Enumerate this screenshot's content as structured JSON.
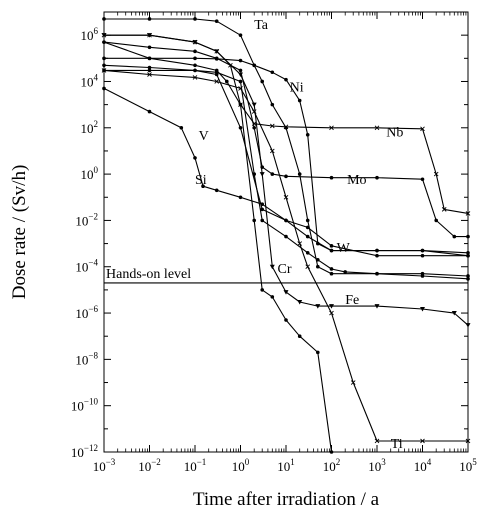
{
  "chart_data": {
    "type": "line",
    "xlabel": "Time after irradiation / a",
    "ylabel": "Dose rate / (Sv/h)",
    "x_scale": "log",
    "y_scale": "log",
    "xlim": [
      0.001,
      100000
    ],
    "ylim": [
      1e-12,
      10000000
    ],
    "x_ticks": [
      {
        "base": "10",
        "exp": "−3"
      },
      {
        "base": "10",
        "exp": "−2"
      },
      {
        "base": "10",
        "exp": "−1"
      },
      {
        "base": "10",
        "exp": "0"
      },
      {
        "base": "10",
        "exp": "1"
      },
      {
        "base": "10",
        "exp": "2"
      },
      {
        "base": "10",
        "exp": "3"
      },
      {
        "base": "10",
        "exp": "4"
      },
      {
        "base": "10",
        "exp": "5"
      }
    ],
    "y_ticks": [
      {
        "base": "10",
        "exp": "6"
      },
      {
        "base": "10",
        "exp": "4"
      },
      {
        "base": "10",
        "exp": "2"
      },
      {
        "base": "10",
        "exp": "0"
      },
      {
        "base": "10",
        "exp": "−2"
      },
      {
        "base": "10",
        "exp": "−4"
      },
      {
        "base": "10",
        "exp": "−6"
      },
      {
        "base": "10",
        "exp": "−8"
      },
      {
        "base": "10",
        "exp": "−10"
      },
      {
        "base": "10",
        "exp": "−12"
      }
    ],
    "reference_line": {
      "label": "Hands-on level",
      "y": 2e-05
    },
    "series": [
      {
        "name": "Ta",
        "marker": "dot",
        "label_at": [
          2.0,
          3000000
        ],
        "x": [
          0.001,
          0.01,
          0.1,
          0.3,
          1,
          2,
          3,
          5,
          10,
          20,
          30,
          50,
          100,
          1000,
          10000,
          100000
        ],
        "y": [
          5000000,
          5000000,
          5000000,
          4000000,
          1000000,
          50000,
          10000,
          1000,
          100,
          1,
          0.01,
          0.0001,
          5e-05,
          5e-05,
          4e-05,
          3e-05
        ]
      },
      {
        "name": "Ni",
        "marker": "dot",
        "label_at": [
          12,
          6000
        ],
        "x": [
          0.001,
          0.01,
          0.1,
          0.3,
          1,
          2,
          5,
          10,
          20,
          30,
          50,
          100,
          1000,
          10000,
          100000
        ],
        "y": [
          100000,
          100000,
          100000,
          95000,
          80000,
          50000,
          25000,
          12000,
          1500,
          50,
          0.001,
          0.0005,
          0.0005,
          0.0005,
          0.0003
        ]
      },
      {
        "name": "Nb",
        "marker": "cross",
        "label_at": [
          1600,
          70
        ],
        "x": [
          0.001,
          0.01,
          0.1,
          0.3,
          0.6,
          1,
          2,
          5,
          10,
          100,
          1000,
          10000,
          20000,
          30000,
          100000
        ],
        "y": [
          1000000,
          1000000,
          500000,
          200000,
          50000,
          1000,
          150,
          120,
          110,
          100,
          100,
          90,
          1,
          0.03,
          0.02
        ]
      },
      {
        "name": "Mo",
        "marker": "dot",
        "label_at": [
          220,
          0.6
        ],
        "x": [
          0.001,
          0.01,
          0.1,
          0.3,
          1,
          2,
          3,
          5,
          10,
          100,
          1000,
          10000,
          20000,
          50000,
          100000
        ],
        "y": [
          500000,
          300000,
          200000,
          100000,
          30000,
          100,
          2,
          1,
          0.8,
          0.7,
          0.7,
          0.6,
          0.01,
          0.002,
          0.002
        ]
      },
      {
        "name": "V",
        "marker": "dot",
        "label_at": [
          0.12,
          50
        ],
        "x": [
          0.001,
          0.01,
          0.1,
          0.3,
          0.5,
          1,
          2,
          3,
          5,
          10,
          20,
          50,
          100
        ],
        "y": [
          500000,
          100000,
          50000,
          30000,
          10000,
          1000,
          0.01,
          1e-05,
          5e-06,
          5e-07,
          1e-07,
          2e-08,
          1e-12
        ]
      },
      {
        "name": "Si",
        "marker": "dot",
        "label_at": [
          0.1,
          0.6
        ],
        "x": [
          0.001,
          0.01,
          0.05,
          0.1,
          0.15,
          0.3,
          1,
          3,
          10,
          30,
          100,
          1000,
          10000,
          100000
        ],
        "y": [
          5000,
          500,
          100,
          5,
          0.3,
          0.2,
          0.1,
          0.05,
          0.01,
          0.002,
          0.0005,
          0.0005,
          0.0005,
          0.0004
        ]
      },
      {
        "name": "W",
        "marker": "dot",
        "label_at": [
          130,
          0.0007
        ],
        "x": [
          0.001,
          0.01,
          0.1,
          0.3,
          1,
          3,
          10,
          30,
          100,
          1000,
          10000,
          100000
        ],
        "y": [
          50000,
          40000,
          30000,
          20000,
          100,
          0.03,
          0.01,
          0.005,
          0.0008,
          0.0003,
          0.0003,
          0.0003
        ]
      },
      {
        "name": "Cr",
        "marker": "dot",
        "label_at": [
          6.5,
          9e-05
        ],
        "x": [
          0.001,
          0.01,
          0.1,
          0.3,
          1,
          2,
          3,
          10,
          30,
          50,
          100,
          200,
          1000,
          10000,
          100000
        ],
        "y": [
          30000,
          30000,
          30000,
          25000,
          10000,
          1,
          0.01,
          0.002,
          0.0004,
          0.0002,
          8e-05,
          6e-05,
          5e-05,
          5e-05,
          4e-05
        ]
      },
      {
        "name": "Fe",
        "marker": "triangle",
        "label_at": [
          200,
          4e-06
        ],
        "x": [
          0.001,
          0.01,
          0.1,
          0.3,
          1,
          2,
          3,
          5,
          10,
          20,
          50,
          100,
          1000,
          10000,
          50000,
          100000
        ],
        "y": [
          1000000,
          1000000,
          500000,
          200000,
          20000,
          1000,
          1,
          0.0001,
          8e-06,
          3e-06,
          2e-06,
          2e-06,
          2e-06,
          1.5e-06,
          1e-06,
          3e-07
        ]
      },
      {
        "name": "Ti",
        "marker": "cross",
        "label_at": [
          2000,
          2.5e-12
        ],
        "x": [
          0.001,
          0.01,
          0.1,
          0.3,
          1,
          2,
          5,
          10,
          20,
          30,
          100,
          300,
          1000,
          10000,
          100000
        ],
        "y": [
          30000,
          20000,
          15000,
          10000,
          5000,
          500,
          10,
          0.1,
          0.001,
          0.0001,
          1e-06,
          1e-09,
          3e-12,
          3e-12,
          3e-12
        ]
      }
    ]
  }
}
